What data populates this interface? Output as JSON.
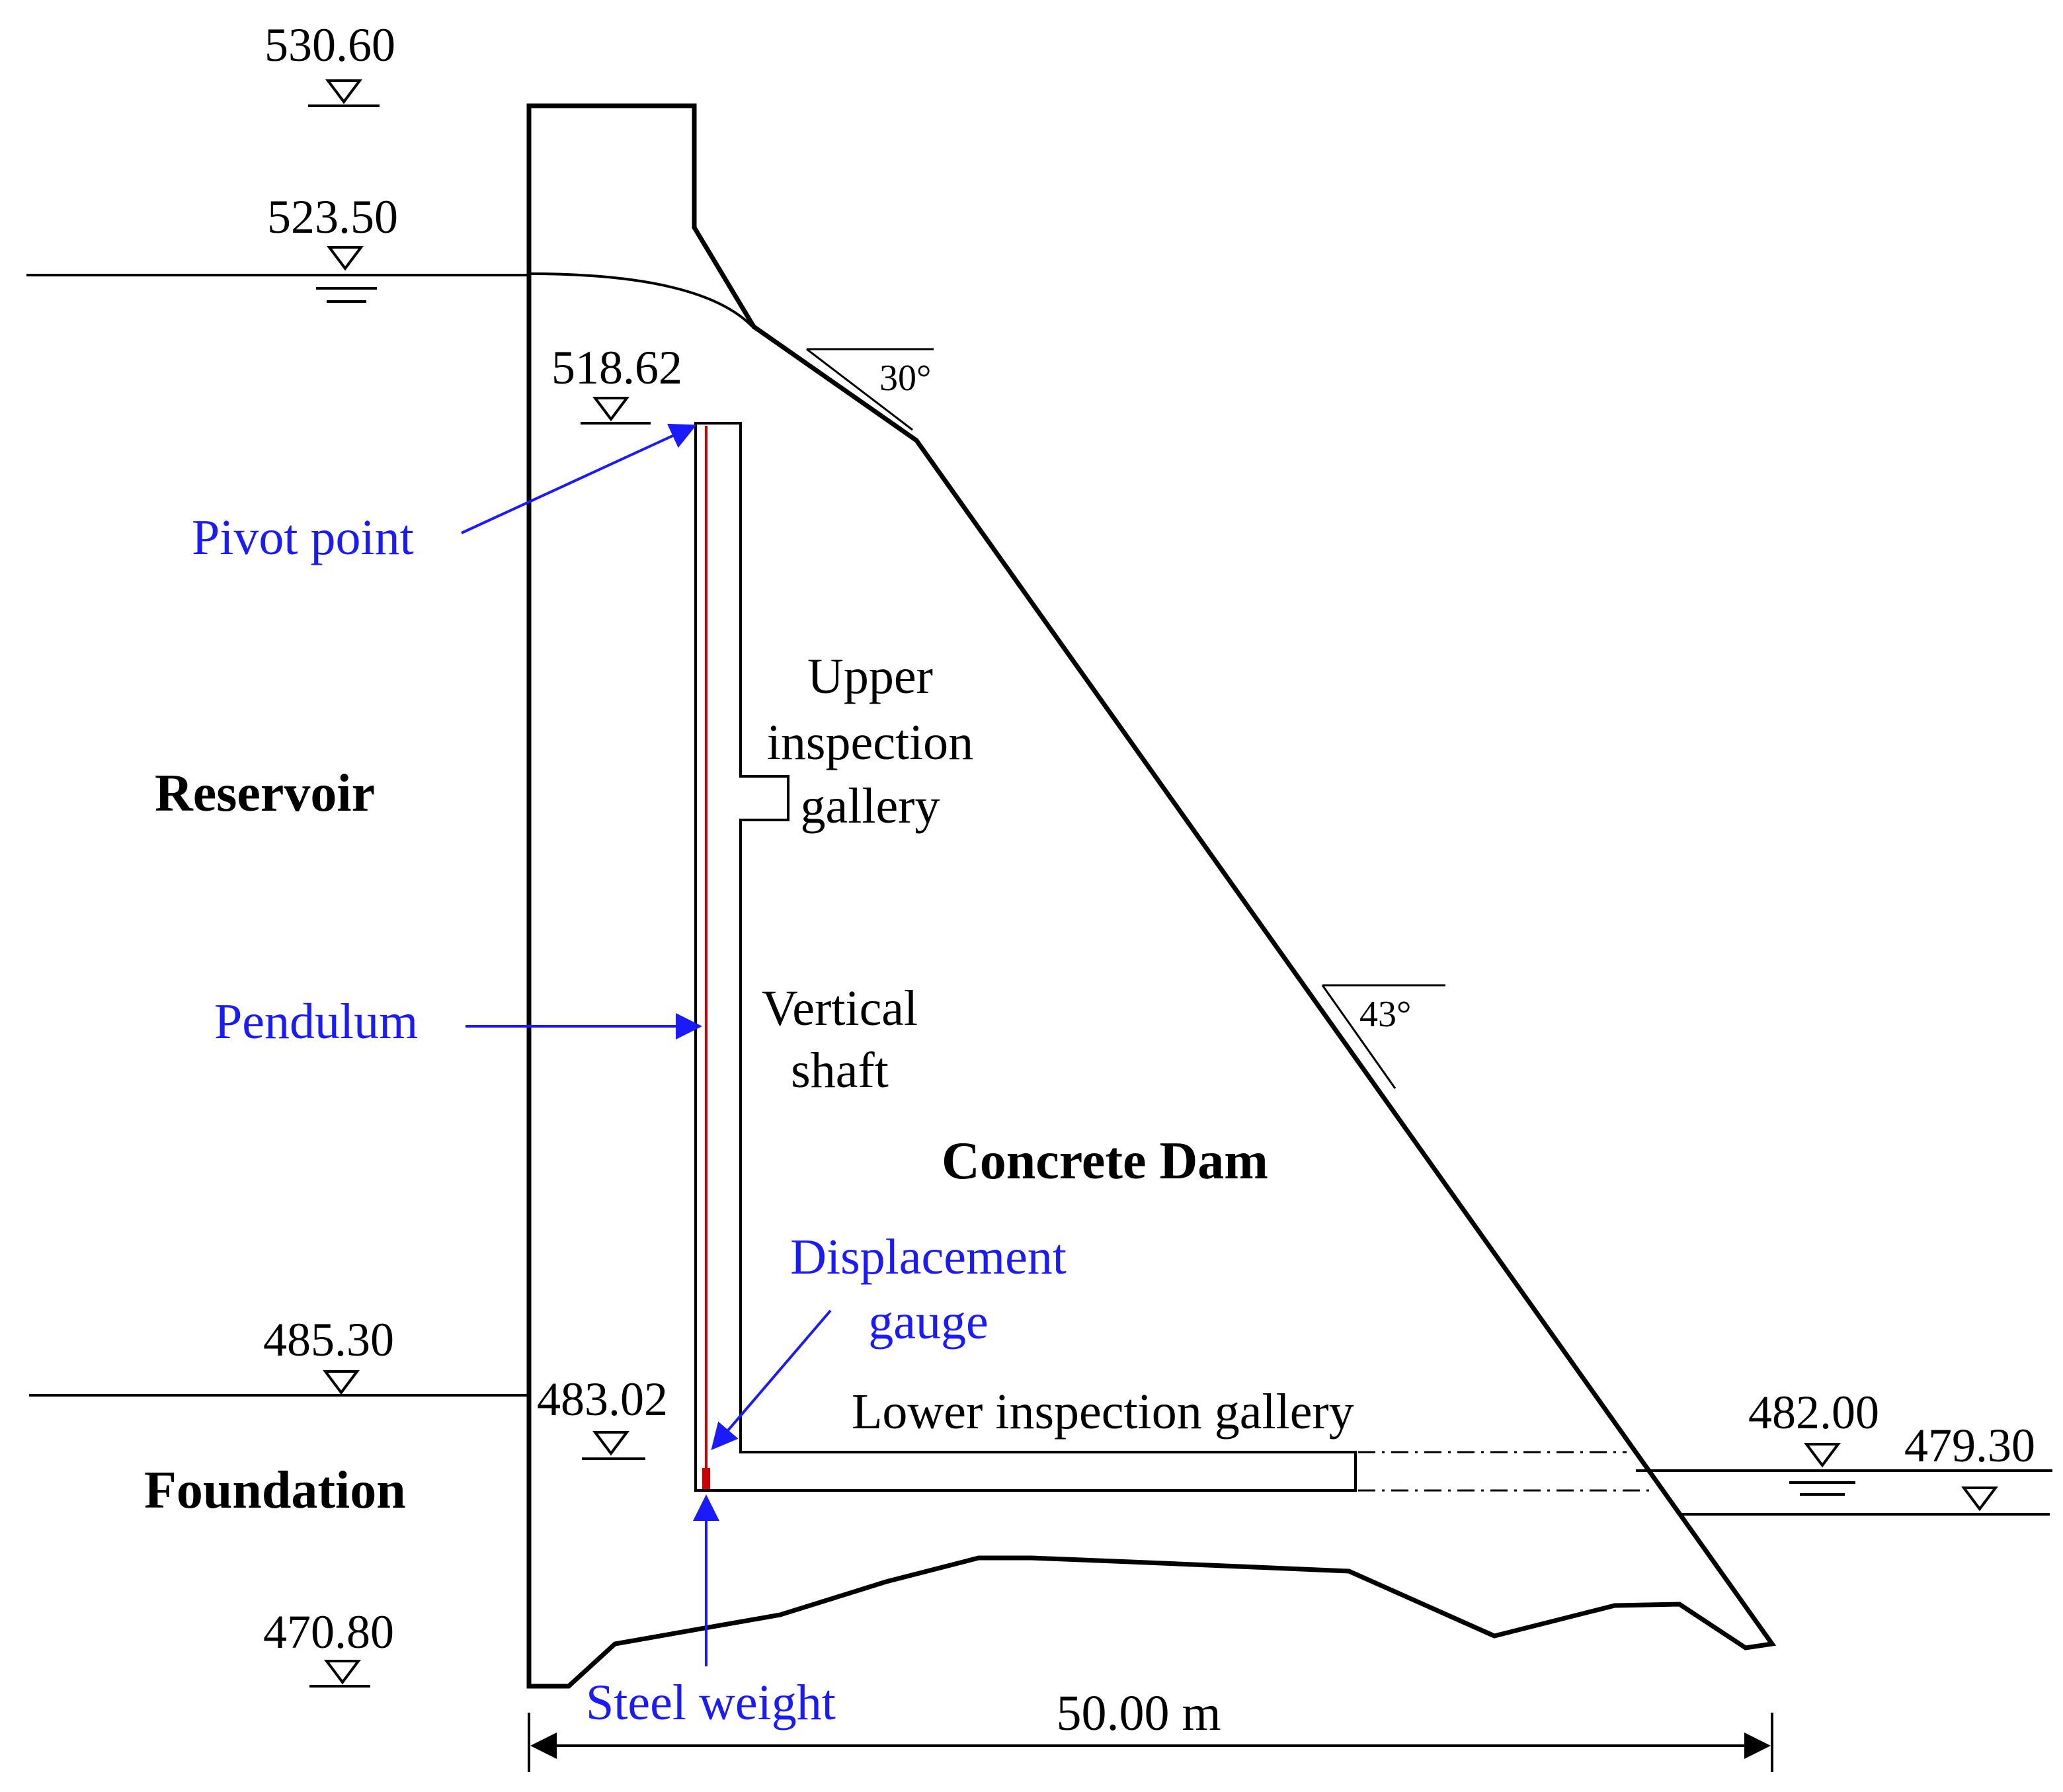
{
  "elevations": {
    "crest": "530.60",
    "upstream_water": "523.50",
    "pivot": "518.62",
    "gauge": "483.02",
    "foundation_top": "485.30",
    "foundation_bottom": "470.80",
    "downstream_water": "482.00",
    "downstream_ground": "479.30"
  },
  "angles": {
    "upper": "30°",
    "lower": "43°"
  },
  "labels": {
    "reservoir": "Reservoir",
    "foundation": "Foundation",
    "concrete_dam": "Concrete Dam",
    "upper_gallery": [
      "Upper",
      "inspection",
      "gallery"
    ],
    "vertical_shaft": [
      "Vertical",
      "shaft"
    ],
    "lower_gallery": "Lower inspection gallery",
    "pivot_point": "Pivot point",
    "pendulum": "Pendulum",
    "displacement_gauge": [
      "Displacement",
      "gauge"
    ],
    "steel_weight": "Steel weight",
    "base_width": "50.00 m"
  },
  "colors": {
    "line": "#000000",
    "annotation": "#1a1aff",
    "pendulum_wire": "#cc0000"
  }
}
